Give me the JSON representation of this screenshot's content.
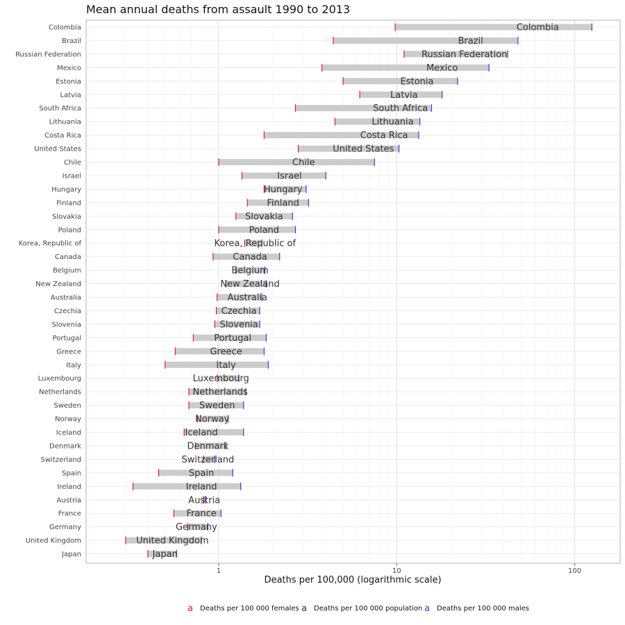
{
  "chart_data": {
    "type": "range-dot",
    "title": "Mean annual deaths from assault 1990 to 2013",
    "xlabel": "Deaths per 100,000 (logarithmic scale)",
    "ylabel": "",
    "x_scale": "log10",
    "xlim": [
      0.18,
      180
    ],
    "x_ticks": [
      1,
      10,
      100
    ],
    "x_tick_labels": [
      "1",
      "10",
      "100"
    ],
    "grid": true,
    "legend_position": "bottom",
    "legend": [
      {
        "key": "a",
        "label": "Deaths per 100 000 females",
        "color": "#e41a1c"
      },
      {
        "key": "a",
        "label": "Deaths per 100 000 population",
        "color": "#333333"
      },
      {
        "key": "a",
        "label": "Deaths per 100 000 males",
        "color": "#3b3bd8"
      }
    ],
    "countries": [
      {
        "name": "Colombia",
        "female": 9.8,
        "population": 62,
        "male": 125
      },
      {
        "name": "Brazil",
        "female": 4.4,
        "population": 26,
        "male": 48
      },
      {
        "name": "Russian Federation",
        "female": 11,
        "population": 24,
        "male": 42
      },
      {
        "name": "Mexico",
        "female": 3.8,
        "population": 18,
        "male": 33
      },
      {
        "name": "Estonia",
        "female": 5,
        "population": 13,
        "male": 22
      },
      {
        "name": "Latvia",
        "female": 6.2,
        "population": 11,
        "male": 18
      },
      {
        "name": "South Africa",
        "female": 2.7,
        "population": 10.5,
        "male": 15.7
      },
      {
        "name": "Lithuania",
        "female": 4.5,
        "population": 9.5,
        "male": 13.5
      },
      {
        "name": "Costa Rica",
        "female": 1.8,
        "population": 8.5,
        "male": 13.3
      },
      {
        "name": "United States",
        "female": 2.8,
        "population": 6.5,
        "male": 10.3
      },
      {
        "name": "Chile",
        "female": 1,
        "population": 3,
        "male": 7.5
      },
      {
        "name": "Israel",
        "female": 1.35,
        "population": 2.5,
        "male": 4
      },
      {
        "name": "Hungary",
        "female": 1.8,
        "population": 2.3,
        "male": 3.1
      },
      {
        "name": "Finland",
        "female": 1.45,
        "population": 2.3,
        "male": 3.2
      },
      {
        "name": "Slovakia",
        "female": 1.25,
        "population": 1.8,
        "male": 2.6
      },
      {
        "name": "Poland",
        "female": 1,
        "population": 1.8,
        "male": 2.7
      },
      {
        "name": "Korea, Republic of",
        "female": 1.4,
        "population": 1.6,
        "male": 1.75
      },
      {
        "name": "Canada",
        "female": 0.93,
        "population": 1.5,
        "male": 2.2
      },
      {
        "name": "Belgium",
        "female": 1.25,
        "population": 1.5,
        "male": 1.82
      },
      {
        "name": "New Zealand",
        "female": 1.1,
        "population": 1.5,
        "male": 1.85
      },
      {
        "name": "Australia",
        "female": 0.98,
        "population": 1.45,
        "male": 1.75
      },
      {
        "name": "Czechia",
        "female": 0.97,
        "population": 1.3,
        "male": 1.7
      },
      {
        "name": "Slovenia",
        "female": 0.95,
        "population": 1.3,
        "male": 1.7
      },
      {
        "name": "Portugal",
        "female": 0.72,
        "population": 1.2,
        "male": 1.85
      },
      {
        "name": "Greece",
        "female": 0.57,
        "population": 1.1,
        "male": 1.8
      },
      {
        "name": "Italy",
        "female": 0.5,
        "population": 1.1,
        "male": 1.9
      },
      {
        "name": "Luxembourg",
        "female": 0.98,
        "population": 1.03,
        "male": 1.3
      },
      {
        "name": "Netherlands",
        "female": 0.68,
        "population": 1.02,
        "male": 1.42
      },
      {
        "name": "Sweden",
        "female": 0.68,
        "population": 0.98,
        "male": 1.38
      },
      {
        "name": "Norway",
        "female": 0.76,
        "population": 0.92,
        "male": 1.13
      },
      {
        "name": "Iceland",
        "female": 0.64,
        "population": 0.8,
        "male": 1.38
      },
      {
        "name": "Denmark",
        "female": 0.74,
        "population": 0.87,
        "male": 1.1
      },
      {
        "name": "Switzerland",
        "female": 0.82,
        "population": 0.87,
        "male": 0.95
      },
      {
        "name": "Spain",
        "female": 0.46,
        "population": 0.8,
        "male": 1.2
      },
      {
        "name": "Ireland",
        "female": 0.33,
        "population": 0.8,
        "male": 1.33
      },
      {
        "name": "Austria",
        "female": 0.82,
        "population": 0.83,
        "male": 0.84
      },
      {
        "name": "France",
        "female": 0.56,
        "population": 0.8,
        "male": 1.03
      },
      {
        "name": "Germany",
        "female": 0.67,
        "population": 0.75,
        "male": 0.87
      },
      {
        "name": "United Kingdom",
        "female": 0.3,
        "population": 0.55,
        "male": 0.8
      },
      {
        "name": "Japan",
        "female": 0.4,
        "population": 0.5,
        "male": 0.58
      }
    ]
  }
}
